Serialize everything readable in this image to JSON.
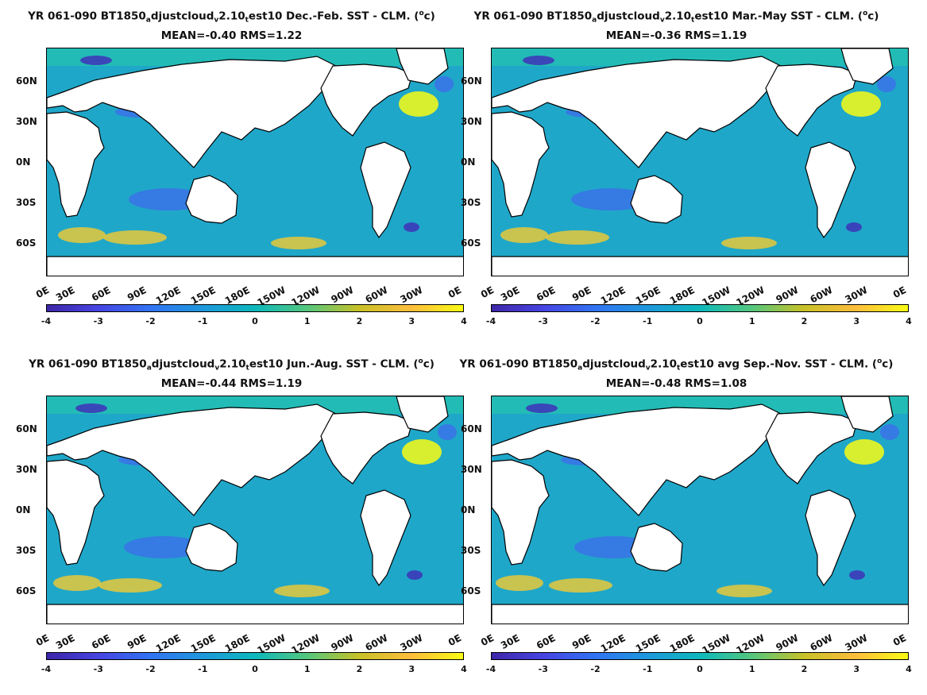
{
  "panels": [
    {
      "title_prefix": "YR 061-090 BT1850",
      "title_sub1": "a",
      "title_mid": "djustcloud",
      "title_sub2": "v",
      "title_mid2": "2.10",
      "title_sub3": "t",
      "title_suffix": "est10  Dec.-Feb. SST - CLM. (",
      "title_sup": "o",
      "title_end": "c)",
      "stats": "MEAN=-0.40   RMS=1.22"
    },
    {
      "title_prefix": "YR 061-090 BT1850",
      "title_sub1": "a",
      "title_mid": "djustcloud",
      "title_sub2": "v",
      "title_mid2": "2.10",
      "title_sub3": "t",
      "title_suffix": "est10  Mar.-May SST - CLM. (",
      "title_sup": "o",
      "title_end": "c)",
      "stats": "MEAN=-0.36   RMS=1.19"
    },
    {
      "title_prefix": "YR 061-090 BT1850",
      "title_sub1": "a",
      "title_mid": "djustcloud",
      "title_sub2": "v",
      "title_mid2": "2.10",
      "title_sub3": "t",
      "title_suffix": "est10  Jun.-Aug. SST - CLM. (",
      "title_sup": "o",
      "title_end": "c)",
      "stats": "MEAN=-0.44   RMS=1.19"
    },
    {
      "title_prefix": "YR 061-090 BT1850",
      "title_sub1": "a",
      "title_mid": "djustcloud",
      "title_sub2": "v",
      "title_mid2": "2.10",
      "title_sub3": "t",
      "title_suffix": "est10 avg Sep.-Nov. SST - CLM. (",
      "title_sup": "o",
      "title_end": "c)",
      "stats": "MEAN=-0.48   RMS=1.08"
    }
  ],
  "axes": {
    "lat_labels": [
      "60N",
      "30N",
      "0N",
      "30S",
      "60S"
    ],
    "lon_labels": [
      "0E",
      "30E",
      "60E",
      "90E",
      "120E",
      "150E",
      "180E",
      "150W",
      "120W",
      "90W",
      "60W",
      "30W",
      "0E"
    ]
  },
  "colorbar": {
    "ticks": [
      "-4",
      "-3",
      "-2",
      "-1",
      "0",
      "1",
      "2",
      "3",
      "4"
    ],
    "colors": [
      "#3e26a8",
      "#4745e3",
      "#3174f3",
      "#1e98dc",
      "#0db8bc",
      "#54c77e",
      "#c8c128",
      "#fdbd3c",
      "#f9fb14"
    ]
  },
  "map_colors": {
    "ocean": "#1fa7c9",
    "land": "#ffffff",
    "coast": "#000000",
    "arctic": "#23bbb6",
    "warm": "#e8c83a",
    "hot": "#f9fb14",
    "cool": "#3b72e8",
    "cold": "#3e32b8"
  }
}
